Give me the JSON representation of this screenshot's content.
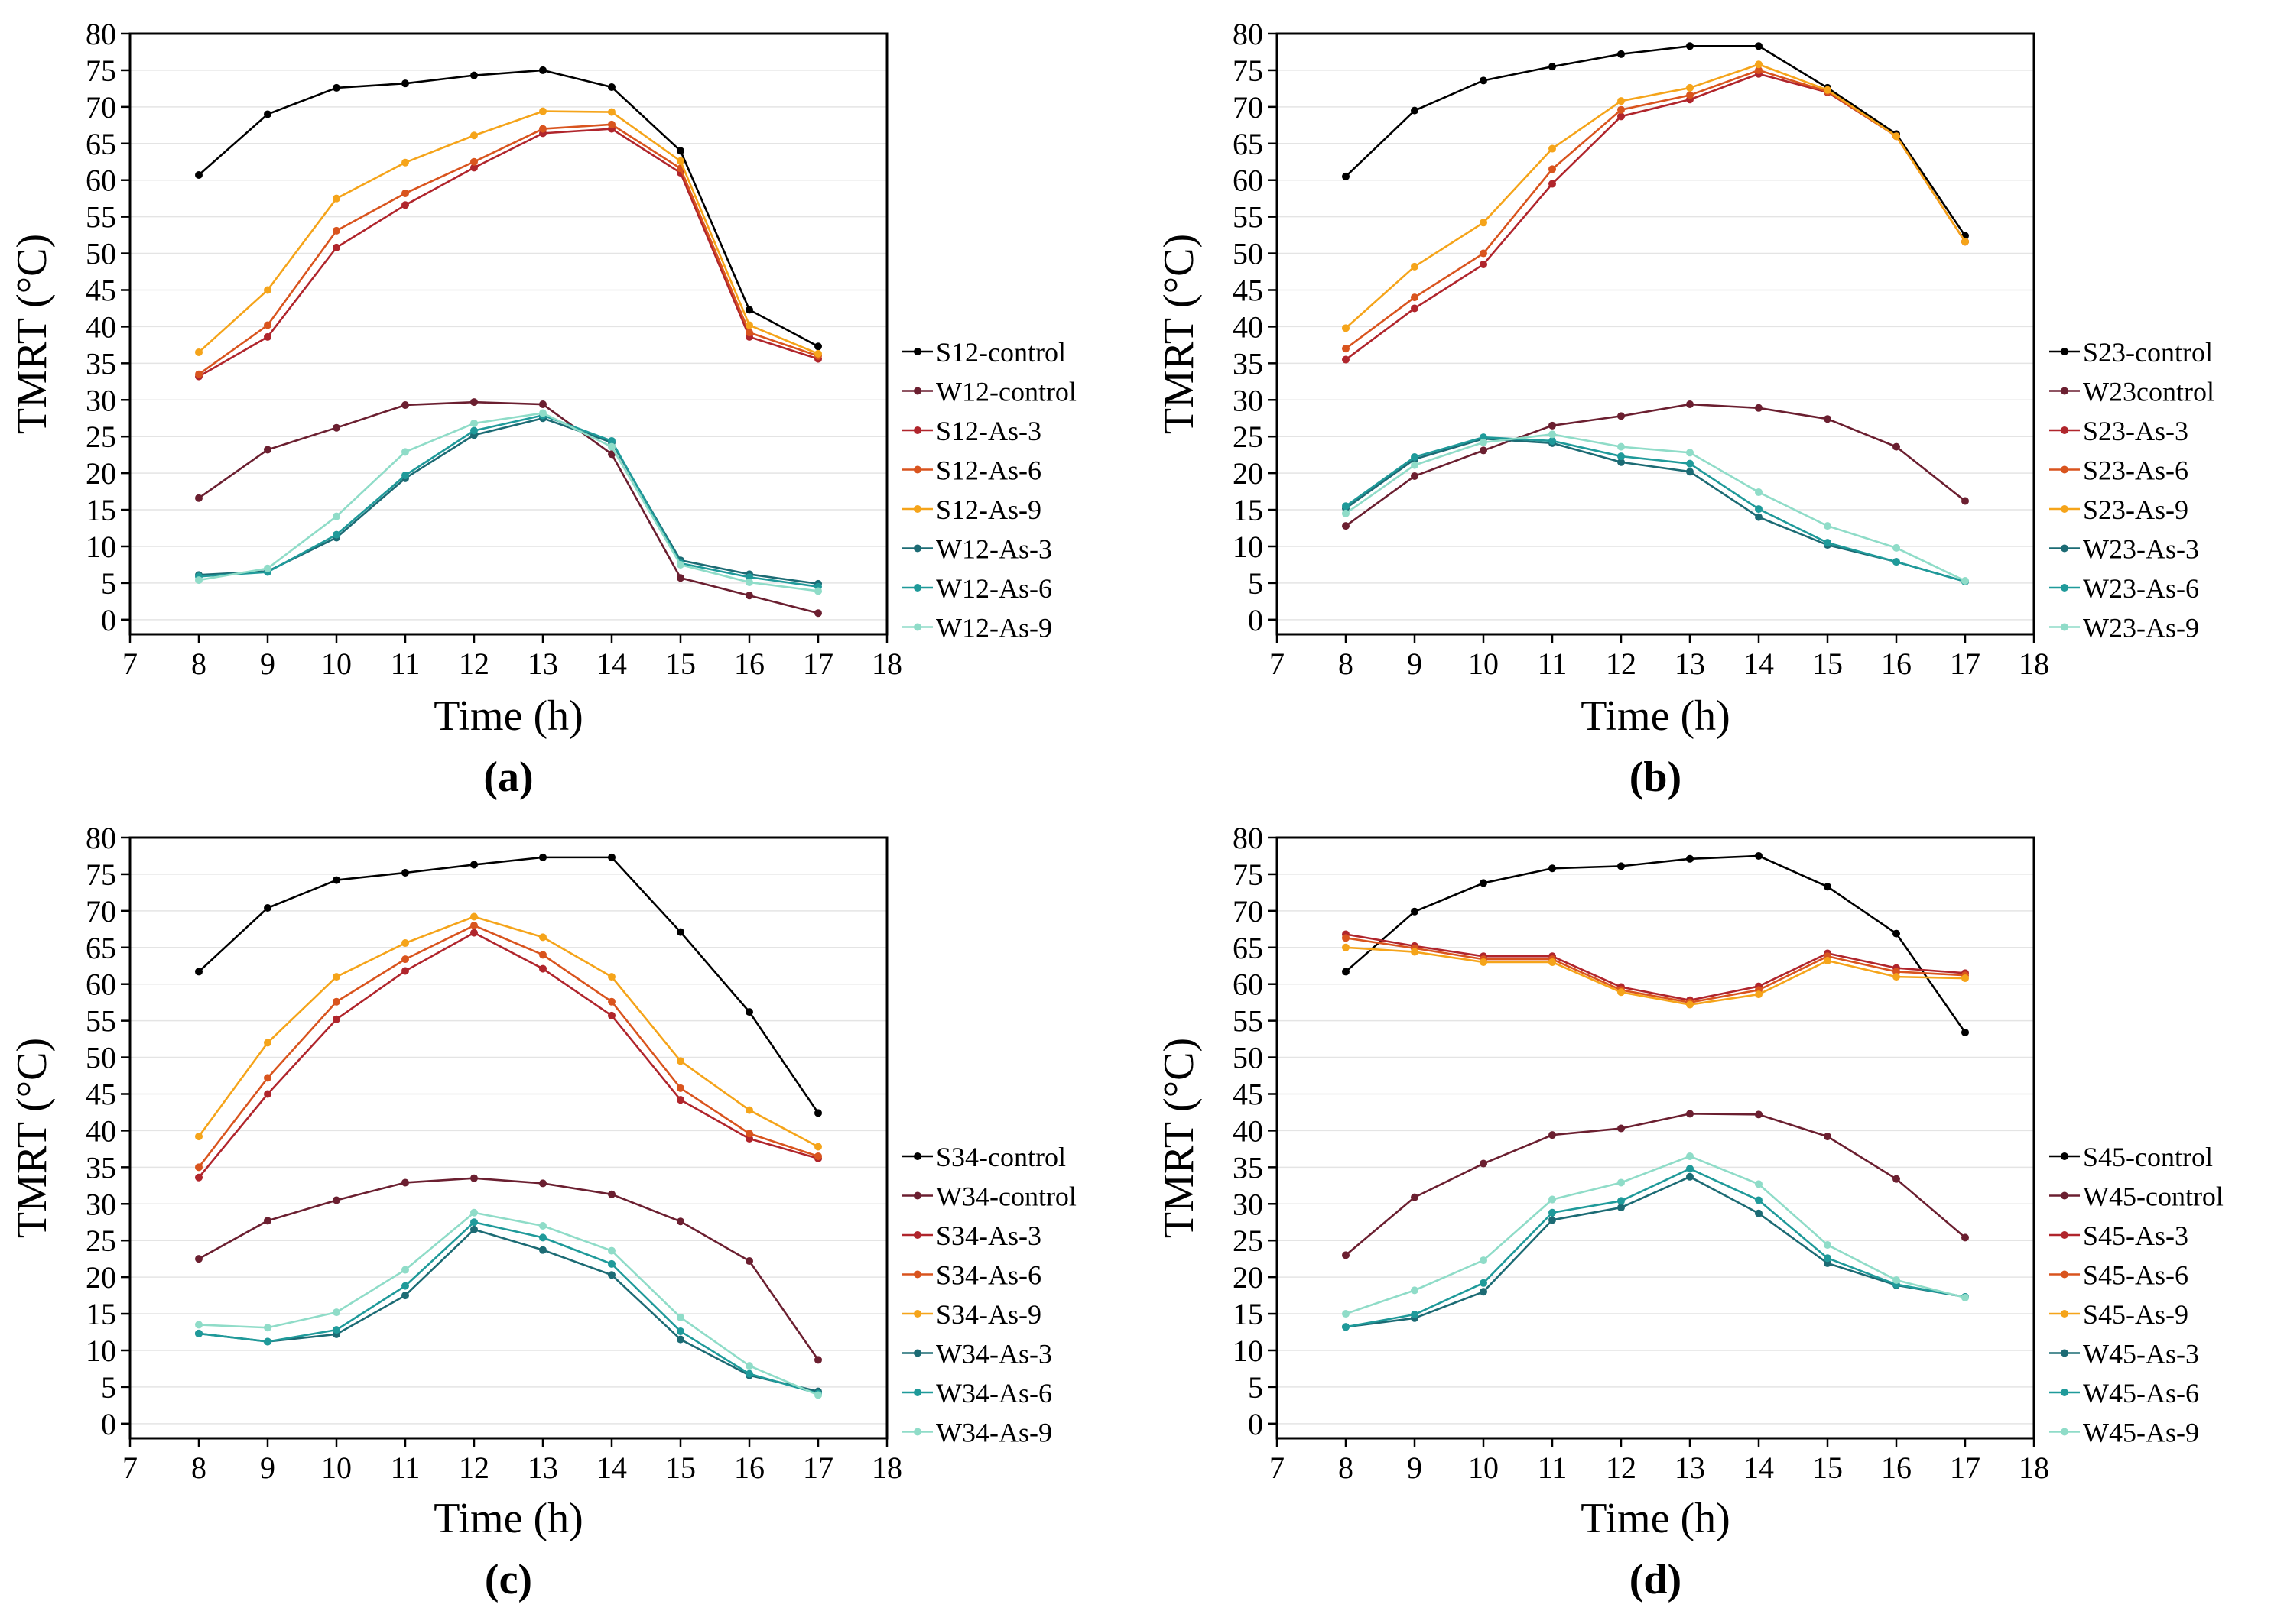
{
  "figure": {
    "panel_labels": [
      "(a)",
      "(b)",
      "(c)",
      "(d)"
    ]
  },
  "colors": {
    "control_s": "#000000",
    "control_w": "#6b1f30",
    "as3_s": "#b0252c",
    "as6_s": "#d9541e",
    "as9_s": "#f5a41a",
    "as3_w": "#1c6b74",
    "as6_w": "#1f9a9a",
    "as9_w": "#8fdcc8"
  },
  "chart_data": [
    {
      "type": "line",
      "panel": "(a)",
      "xlabel": "Time (h)",
      "ylabel": "TMRT (°C)",
      "xlim": [
        7,
        18
      ],
      "ylim": [
        -2,
        80
      ],
      "x_ticks": [
        7,
        8,
        9,
        10,
        11,
        12,
        13,
        14,
        15,
        16,
        17,
        18
      ],
      "y_ticks": [
        0,
        5,
        10,
        15,
        20,
        25,
        30,
        35,
        40,
        45,
        50,
        55,
        60,
        65,
        70,
        75,
        80
      ],
      "x": [
        8,
        9,
        10,
        11,
        12,
        13,
        14,
        15,
        16,
        17
      ],
      "legend_position": "right",
      "series": [
        {
          "name": "S12-control",
          "color_key": "control_s",
          "values": [
            60.7,
            69.0,
            72.6,
            73.2,
            74.3,
            75.0,
            72.7,
            64.0,
            42.3,
            37.3
          ]
        },
        {
          "name": "W12-control",
          "color_key": "control_w",
          "values": [
            16.6,
            23.2,
            26.2,
            29.3,
            29.7,
            29.4,
            22.6,
            5.7,
            3.3,
            0.9
          ]
        },
        {
          "name": "S12-As-3",
          "color_key": "as3_s",
          "values": [
            33.2,
            38.6,
            50.8,
            56.6,
            61.7,
            66.4,
            67.0,
            61.0,
            38.6,
            35.6
          ]
        },
        {
          "name": "S12-As-6",
          "color_key": "as6_s",
          "values": [
            33.5,
            40.2,
            53.1,
            58.2,
            62.5,
            67.0,
            67.6,
            61.6,
            39.2,
            36.0
          ]
        },
        {
          "name": "S12-As-9",
          "color_key": "as9_s",
          "values": [
            36.5,
            45.0,
            57.5,
            62.4,
            66.1,
            69.4,
            69.3,
            62.6,
            40.2,
            36.3
          ]
        },
        {
          "name": "W12-As-3",
          "color_key": "as3_w",
          "values": [
            6.1,
            6.6,
            11.2,
            19.3,
            25.2,
            27.5,
            24.2,
            8.1,
            6.2,
            4.9
          ]
        },
        {
          "name": "W12-As-6",
          "color_key": "as6_w",
          "values": [
            5.9,
            6.5,
            11.6,
            19.7,
            25.8,
            27.9,
            24.4,
            7.7,
            5.8,
            4.5
          ]
        },
        {
          "name": "W12-As-9",
          "color_key": "as9_w",
          "values": [
            5.4,
            7.0,
            14.1,
            22.9,
            26.8,
            28.2,
            23.6,
            7.5,
            5.1,
            3.9
          ]
        }
      ]
    },
    {
      "type": "line",
      "panel": "(b)",
      "xlabel": "Time (h)",
      "ylabel": "TMRT (°C)",
      "xlim": [
        7,
        18
      ],
      "ylim": [
        -2,
        80
      ],
      "x_ticks": [
        7,
        8,
        9,
        10,
        11,
        12,
        13,
        14,
        15,
        16,
        17,
        18
      ],
      "y_ticks": [
        0,
        5,
        10,
        15,
        20,
        25,
        30,
        35,
        40,
        45,
        50,
        55,
        60,
        65,
        70,
        75,
        80
      ],
      "x": [
        8,
        9,
        10,
        11,
        12,
        13,
        14,
        15,
        16,
        17
      ],
      "legend_position": "right",
      "series": [
        {
          "name": "S23-control",
          "color_key": "control_s",
          "values": [
            60.5,
            69.5,
            73.6,
            75.5,
            77.2,
            78.3,
            78.3,
            72.6,
            66.3,
            52.4
          ]
        },
        {
          "name": "W23control",
          "color_key": "control_w",
          "values": [
            12.8,
            19.6,
            23.1,
            26.5,
            27.8,
            29.4,
            28.9,
            27.4,
            23.6,
            16.2
          ]
        },
        {
          "name": "S23-As-3",
          "color_key": "as3_s",
          "values": [
            35.5,
            42.5,
            48.5,
            59.5,
            68.7,
            71.0,
            74.5,
            72.0,
            66.0,
            51.6
          ]
        },
        {
          "name": "S23-As-6",
          "color_key": "as6_s",
          "values": [
            37.0,
            44.0,
            50.0,
            61.5,
            69.6,
            71.6,
            75.0,
            72.1,
            66.0,
            51.6
          ]
        },
        {
          "name": "S23-As-9",
          "color_key": "as9_s",
          "values": [
            39.8,
            48.2,
            54.2,
            64.3,
            70.8,
            72.6,
            75.8,
            72.3,
            66.0,
            51.6
          ]
        },
        {
          "name": "W23-As-3",
          "color_key": "as3_w",
          "values": [
            15.2,
            21.9,
            24.7,
            24.1,
            21.5,
            20.2,
            14.0,
            10.2,
            7.9,
            5.2
          ]
        },
        {
          "name": "W23-As-6",
          "color_key": "as6_w",
          "values": [
            15.5,
            22.2,
            24.9,
            24.4,
            22.3,
            21.3,
            15.1,
            10.5,
            7.9,
            5.2
          ]
        },
        {
          "name": "W23-As-9",
          "color_key": "as9_w",
          "values": [
            14.5,
            21.1,
            24.2,
            25.3,
            23.6,
            22.8,
            17.4,
            12.8,
            9.8,
            5.3
          ]
        }
      ]
    },
    {
      "type": "line",
      "panel": "(c)",
      "xlabel": "Time (h)",
      "ylabel": "TMRT (°C)",
      "xlim": [
        7,
        18
      ],
      "ylim": [
        -2,
        80
      ],
      "x_ticks": [
        7,
        8,
        9,
        10,
        11,
        12,
        13,
        14,
        15,
        16,
        17,
        18
      ],
      "y_ticks": [
        0,
        5,
        10,
        15,
        20,
        25,
        30,
        35,
        40,
        45,
        50,
        55,
        60,
        65,
        70,
        75,
        80
      ],
      "x": [
        8,
        9,
        10,
        11,
        12,
        13,
        14,
        15,
        16,
        17
      ],
      "legend_position": "right",
      "series": [
        {
          "name": "S34-control",
          "color_key": "control_s",
          "values": [
            61.7,
            70.4,
            74.2,
            75.2,
            76.3,
            77.3,
            77.3,
            67.1,
            56.2,
            42.4
          ]
        },
        {
          "name": "W34-control",
          "color_key": "control_w",
          "values": [
            22.5,
            27.7,
            30.5,
            32.9,
            33.5,
            32.8,
            31.3,
            27.6,
            22.2,
            8.7
          ]
        },
        {
          "name": "S34-As-3",
          "color_key": "as3_s",
          "values": [
            33.6,
            45.0,
            55.2,
            61.8,
            67.0,
            62.1,
            55.7,
            44.2,
            38.9,
            36.2
          ]
        },
        {
          "name": "S34-As-6",
          "color_key": "as6_s",
          "values": [
            35.0,
            47.2,
            57.6,
            63.4,
            68.0,
            64.0,
            57.6,
            45.8,
            39.6,
            36.5
          ]
        },
        {
          "name": "S34-As-9",
          "color_key": "as9_s",
          "values": [
            39.2,
            52.0,
            61.0,
            65.6,
            69.2,
            66.4,
            61.0,
            49.5,
            42.8,
            37.8
          ]
        },
        {
          "name": "W34-As-3",
          "color_key": "as3_w",
          "values": [
            12.3,
            11.2,
            12.2,
            17.5,
            26.5,
            23.7,
            20.3,
            11.5,
            6.6,
            4.4
          ]
        },
        {
          "name": "W34-As-6",
          "color_key": "as6_w",
          "values": [
            12.3,
            11.2,
            12.8,
            18.8,
            27.5,
            25.4,
            21.8,
            12.6,
            6.8,
            4.1
          ]
        },
        {
          "name": "W34-As-9",
          "color_key": "as9_w",
          "values": [
            13.5,
            13.1,
            15.2,
            21.0,
            28.8,
            27.0,
            23.6,
            14.5,
            7.9,
            3.9
          ]
        }
      ]
    },
    {
      "type": "line",
      "panel": "(d)",
      "xlabel": "Time (h)",
      "ylabel": "TMRT (°C)",
      "xlim": [
        7,
        18
      ],
      "ylim": [
        -2,
        80
      ],
      "x_ticks": [
        7,
        8,
        9,
        10,
        11,
        12,
        13,
        14,
        15,
        16,
        17,
        18
      ],
      "y_ticks": [
        0,
        5,
        10,
        15,
        20,
        25,
        30,
        35,
        40,
        45,
        50,
        55,
        60,
        65,
        70,
        75,
        80
      ],
      "x": [
        8,
        9,
        10,
        11,
        12,
        13,
        14,
        15,
        16,
        17
      ],
      "legend_position": "right",
      "series": [
        {
          "name": "S45-control",
          "color_key": "control_s",
          "values": [
            61.7,
            69.9,
            73.8,
            75.8,
            76.1,
            77.1,
            77.5,
            73.3,
            66.9,
            53.4
          ]
        },
        {
          "name": "W45-control",
          "color_key": "control_w",
          "values": [
            23.0,
            30.9,
            35.5,
            39.4,
            40.3,
            42.3,
            42.2,
            39.2,
            33.4,
            25.4
          ]
        },
        {
          "name": "S45-As-3",
          "color_key": "as3_s",
          "values": [
            66.8,
            65.2,
            63.8,
            63.8,
            59.6,
            57.8,
            59.7,
            64.2,
            62.2,
            61.5
          ]
        },
        {
          "name": "S45-As-6",
          "color_key": "as6_s",
          "values": [
            66.3,
            64.9,
            63.4,
            63.4,
            59.2,
            57.5,
            59.2,
            63.8,
            61.7,
            61.2
          ]
        },
        {
          "name": "S45-As-9",
          "color_key": "as9_s",
          "values": [
            65.0,
            64.4,
            63.0,
            63.0,
            58.9,
            57.2,
            58.6,
            63.2,
            61.0,
            60.8
          ]
        },
        {
          "name": "W45-As-3",
          "color_key": "as3_w",
          "values": [
            13.2,
            14.4,
            18.0,
            27.8,
            29.5,
            33.7,
            28.7,
            21.9,
            18.9,
            17.3
          ]
        },
        {
          "name": "W45-As-6",
          "color_key": "as6_w",
          "values": [
            13.2,
            14.9,
            19.2,
            28.8,
            30.4,
            34.8,
            30.5,
            22.6,
            19.0,
            17.3
          ]
        },
        {
          "name": "W45-As-9",
          "color_key": "as9_w",
          "values": [
            15.0,
            18.2,
            22.3,
            30.6,
            32.9,
            36.5,
            32.7,
            24.4,
            19.6,
            17.2
          ]
        }
      ]
    }
  ]
}
